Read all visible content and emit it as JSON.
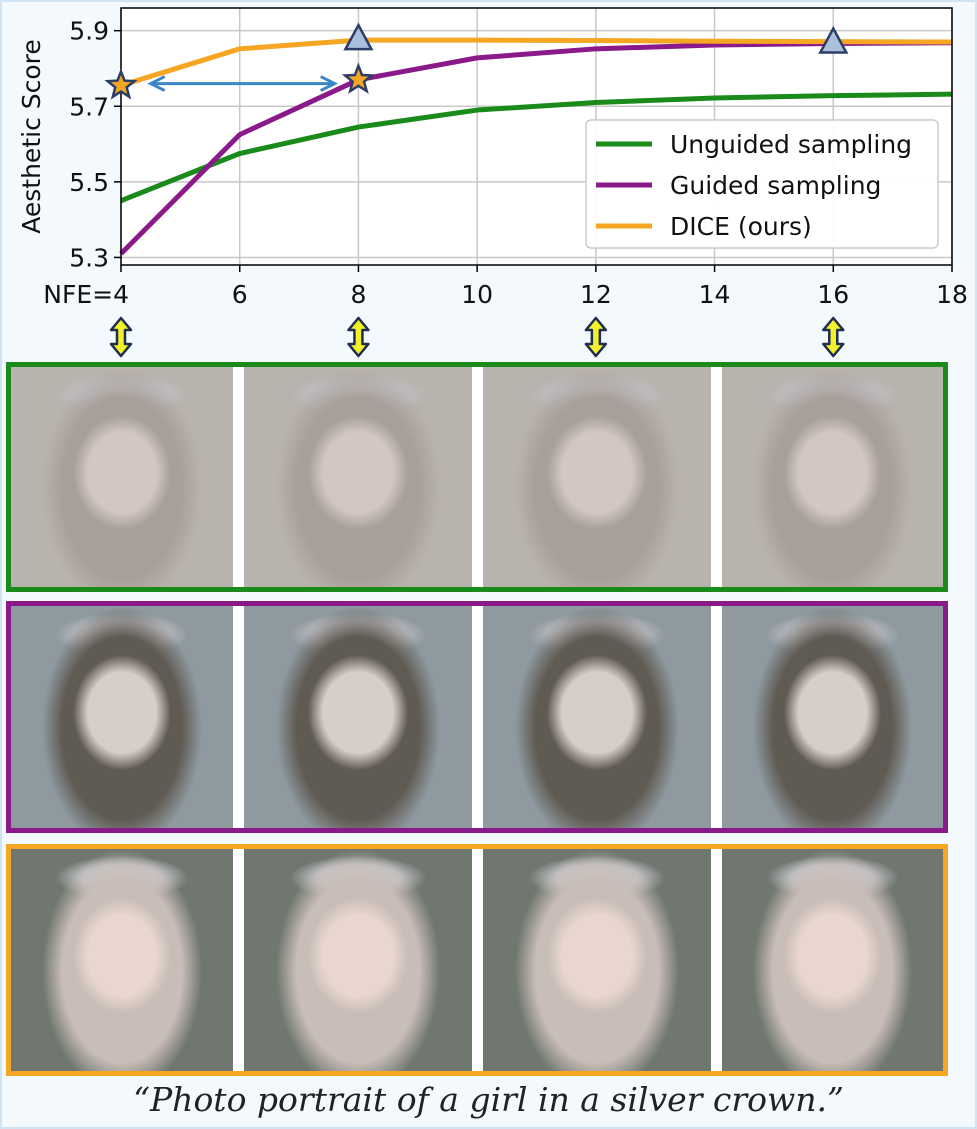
{
  "chart_data": {
    "type": "line",
    "ylabel": "Aesthetic Score",
    "x": [
      4,
      6,
      8,
      10,
      12,
      14,
      16,
      18
    ],
    "x_tick_labels": [
      "NFE=4",
      "6",
      "8",
      "10",
      "12",
      "14",
      "16",
      "18"
    ],
    "y_ticks": [
      5.3,
      5.5,
      5.7,
      5.9
    ],
    "xlim": [
      4,
      18
    ],
    "ylim": [
      5.28,
      5.96
    ],
    "grid": true,
    "legend_position": "lower-right",
    "series": [
      {
        "name": "Unguided sampling",
        "color": "#1a8a1a",
        "values": [
          5.45,
          5.575,
          5.645,
          5.69,
          5.71,
          5.722,
          5.728,
          5.732
        ]
      },
      {
        "name": "Guided sampling",
        "color": "#8a1a8a",
        "values": [
          5.31,
          5.625,
          5.77,
          5.828,
          5.852,
          5.862,
          5.866,
          5.868
        ]
      },
      {
        "name": "DICE (ours)",
        "color": "#f5a623",
        "values": [
          5.755,
          5.852,
          5.875,
          5.875,
          5.874,
          5.872,
          5.871,
          5.87
        ]
      }
    ],
    "annotations": {
      "stars": [
        {
          "x": 4,
          "y": 5.755
        },
        {
          "x": 8,
          "y": 5.77
        }
      ],
      "triangles": [
        {
          "x": 8,
          "y": 5.875
        },
        {
          "x": 16,
          "y": 5.866
        }
      ],
      "double_arrow": {
        "x_from": 4.5,
        "x_to": 7.6,
        "y": 5.76
      },
      "vertical_arrows_x": [
        4,
        8,
        12,
        16
      ]
    }
  },
  "rows": [
    {
      "name": "Unguided sampling",
      "border": "#1a8a1a",
      "palette": [
        "#b9b3ae",
        "#a89f99",
        "#d2c7c1"
      ]
    },
    {
      "name": "Guided sampling",
      "border": "#8a1a8a",
      "palette": [
        "#8f9aa0",
        "#5f5a52",
        "#d6cfc8"
      ]
    },
    {
      "name": "DICE (ours)",
      "border": "#f5a623",
      "palette": [
        "#6f776f",
        "#c9bdb7",
        "#e8d6cf"
      ]
    }
  ],
  "caption": "“Photo portrait of a girl in a silver crown.”"
}
